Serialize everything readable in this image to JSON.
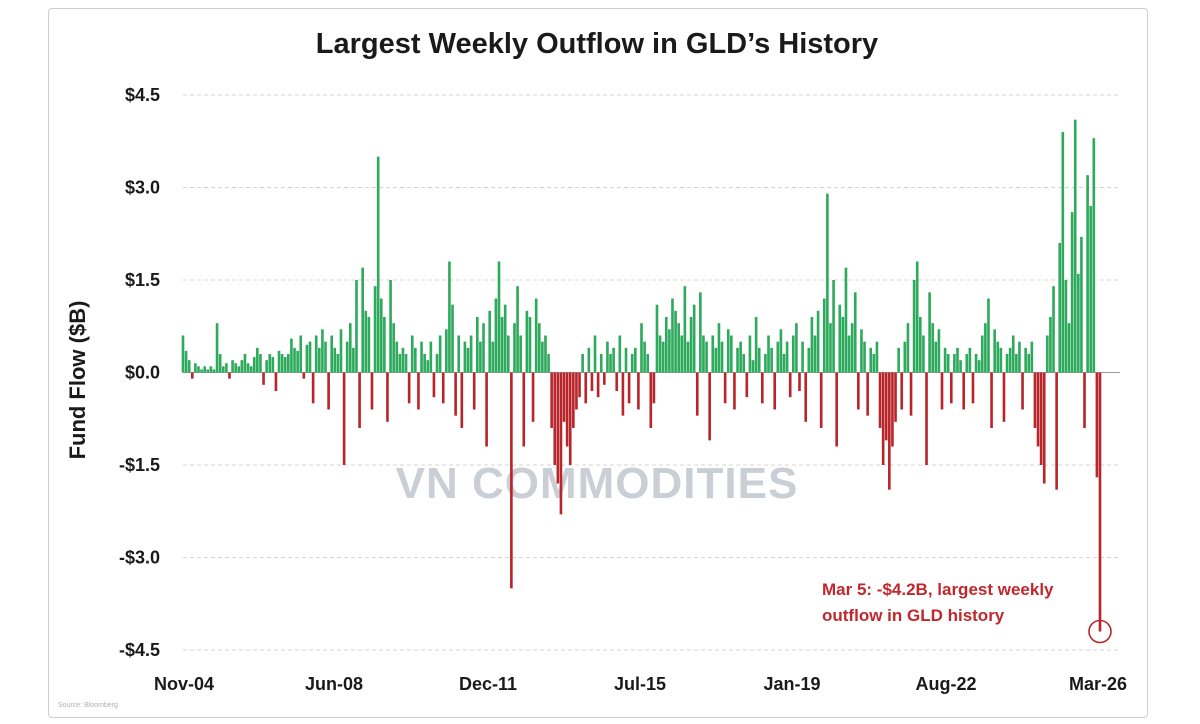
{
  "chart_data": {
    "type": "bar",
    "title": "Largest Weekly Outflow in GLD’s History",
    "ylabel": "Fund Flow ($B)",
    "xlabel": "",
    "ylim": [
      -4.5,
      4.5
    ],
    "ytick_values": [
      4.5,
      3.0,
      1.5,
      0.0,
      -1.5,
      -3.0,
      -4.5
    ],
    "yticks": [
      "$4.5",
      "$3.0",
      "$1.5",
      "$0.0",
      "-$1.5",
      "-$3.0",
      "-$4.5"
    ],
    "xticks": [
      "Nov-04",
      "Jun-08",
      "Dec-11",
      "Jul-15",
      "Jan-19",
      "Aug-22",
      "Mar-26"
    ],
    "grid": "horizontal dashed",
    "positive_color": "#2eaa5c",
    "negative_color": "#b8262b",
    "annotation": {
      "lines": [
        "Mar 5: -$4.2B, largest weekly",
        "outflow in GLD history"
      ],
      "value": -4.2
    },
    "watermark": "VN COMMODITIES",
    "source_note": "Source: Bloomberg",
    "series": [
      {
        "values": [
          0.6,
          0.35,
          0.2,
          -0.1,
          0.15,
          0.1,
          0.05,
          0.1,
          0.05,
          0.1,
          0.05,
          0.8,
          0.3,
          0.1,
          0.15,
          -0.1,
          0.2,
          0.15,
          0.1,
          0.2,
          0.3,
          0.15,
          0.1,
          0.25,
          0.4,
          0.3,
          -0.2,
          0.2,
          0.3,
          0.25,
          -0.3,
          0.35,
          0.3,
          0.25,
          0.3,
          0.55,
          0.4,
          0.35,
          0.6,
          -0.1,
          0.45,
          0.5,
          -0.5,
          0.6,
          0.4,
          0.7,
          0.5,
          -0.6,
          0.6,
          0.4,
          0.3,
          0.7,
          -1.5,
          0.5,
          0.8,
          0.4,
          1.5,
          -0.9,
          1.7,
          1.0,
          0.9,
          -0.6,
          1.4,
          3.5,
          1.2,
          0.9,
          -0.8,
          1.5,
          0.8,
          0.5,
          0.3,
          0.4,
          0.3,
          -0.5,
          0.6,
          0.4,
          -0.6,
          0.5,
          0.3,
          0.2,
          0.5,
          -0.4,
          0.3,
          0.6,
          -0.5,
          0.7,
          1.8,
          1.1,
          -0.7,
          0.6,
          -0.9,
          0.5,
          0.4,
          0.6,
          -0.6,
          0.9,
          0.5,
          0.8,
          -1.2,
          1.0,
          0.5,
          1.2,
          1.8,
          0.9,
          1.1,
          0.6,
          -3.5,
          0.8,
          1.4,
          0.6,
          -1.2,
          1.0,
          0.9,
          -0.8,
          1.2,
          0.8,
          0.5,
          0.6,
          0.3,
          -0.9,
          -1.5,
          -1.8,
          -2.3,
          -0.8,
          -1.2,
          -1.5,
          -0.9,
          -0.6,
          -0.4,
          0.3,
          -0.5,
          0.4,
          -0.3,
          0.6,
          -0.4,
          0.3,
          -0.2,
          0.5,
          0.3,
          0.4,
          -0.3,
          0.6,
          -0.7,
          0.4,
          -0.5,
          0.3,
          0.4,
          -0.6,
          0.8,
          0.5,
          0.3,
          -0.9,
          -0.5,
          1.1,
          0.6,
          0.5,
          0.9,
          0.7,
          1.2,
          1.0,
          0.8,
          0.6,
          1.4,
          0.5,
          0.9,
          1.1,
          -0.7,
          1.3,
          0.6,
          0.5,
          -1.1,
          0.6,
          0.4,
          0.8,
          0.5,
          -0.5,
          0.7,
          0.6,
          -0.6,
          0.4,
          0.5,
          0.3,
          -0.4,
          0.6,
          0.2,
          0.9,
          0.4,
          -0.5,
          0.3,
          0.6,
          0.4,
          -0.6,
          0.5,
          0.7,
          0.3,
          0.5,
          -0.4,
          0.6,
          0.8,
          -0.3,
          0.5,
          -0.8,
          0.4,
          0.9,
          0.6,
          1.0,
          -0.9,
          1.2,
          2.9,
          0.8,
          1.5,
          -1.2,
          1.1,
          0.9,
          1.7,
          0.6,
          0.8,
          1.3,
          -0.6,
          0.7,
          0.5,
          -0.7,
          0.4,
          0.3,
          0.5,
          -0.9,
          -1.5,
          -1.1,
          -1.9,
          -1.2,
          -0.8,
          0.4,
          -0.6,
          0.5,
          0.8,
          -0.7,
          1.5,
          1.8,
          0.9,
          0.6,
          -1.5,
          1.3,
          0.8,
          0.5,
          0.7,
          -0.6,
          0.4,
          0.3,
          -0.5,
          0.3,
          0.4,
          0.2,
          -0.6,
          0.3,
          0.4,
          -0.5,
          0.3,
          0.2,
          0.6,
          0.8,
          1.2,
          -0.9,
          0.7,
          0.5,
          0.4,
          -0.8,
          0.3,
          0.4,
          0.6,
          0.3,
          0.5,
          -0.6,
          0.4,
          0.3,
          0.5,
          -0.9,
          -1.2,
          -1.5,
          -1.8,
          0.6,
          0.9,
          1.4,
          -1.9,
          2.1,
          3.9,
          1.5,
          0.8,
          2.6,
          4.1,
          1.6,
          2.2,
          -0.9,
          3.2,
          2.7,
          3.8,
          -1.7,
          -4.2
        ]
      }
    ]
  }
}
